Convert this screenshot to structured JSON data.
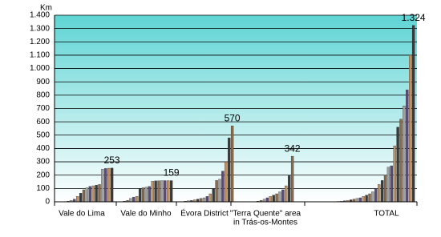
{
  "chart_data": {
    "type": "bar",
    "y_axis_label": "Km",
    "ylim": [
      0,
      1400
    ],
    "yticks": [
      0,
      100,
      200,
      300,
      400,
      500,
      600,
      700,
      800,
      900,
      {
        "value": 1000,
        "label": "1.000"
      },
      {
        "value": 1100,
        "label": "1.100"
      },
      {
        "value": 1200,
        "label": "1.200"
      },
      {
        "value": 1300,
        "label": "1.300"
      },
      {
        "value": 1400,
        "label": "1.400"
      }
    ],
    "grid": true,
    "bar_colors": [
      "#3a3a3a",
      "#8b6b4a",
      "#a0a0a0",
      "#5a4a7a",
      "#c09060"
    ],
    "groups": [
      {
        "name": "Vale do Lima",
        "label": "253",
        "values": [
          2,
          5,
          10,
          20,
          40,
          65,
          90,
          105,
          115,
          120,
          125,
          130,
          245,
          250,
          252,
          253
        ]
      },
      {
        "name": "Vale do Minho",
        "label": "159",
        "values": [
          5,
          10,
          25,
          35,
          40,
          100,
          105,
          110,
          115,
          155,
          157,
          158,
          159,
          159,
          159,
          159
        ]
      },
      {
        "name": "Évora District",
        "label": "570",
        "values": [
          2,
          5,
          8,
          10,
          15,
          20,
          25,
          30,
          40,
          60,
          100,
          160,
          170,
          230,
          300,
          480,
          570
        ]
      },
      {
        "name": [
          "\"Terra Quente\" area",
          "in Trás-os-Montes"
        ],
        "label": "342",
        "values": [
          5,
          10,
          20,
          30,
          40,
          50,
          60,
          75,
          90,
          120,
          200,
          342
        ]
      },
      {
        "name": "TOTAL",
        "label": "1.324",
        "values": [
          2,
          3,
          5,
          8,
          10,
          15,
          20,
          25,
          30,
          40,
          50,
          60,
          75,
          100,
          130,
          160,
          200,
          260,
          270,
          420,
          560,
          620,
          720,
          840,
          1100,
          1324
        ]
      }
    ]
  }
}
